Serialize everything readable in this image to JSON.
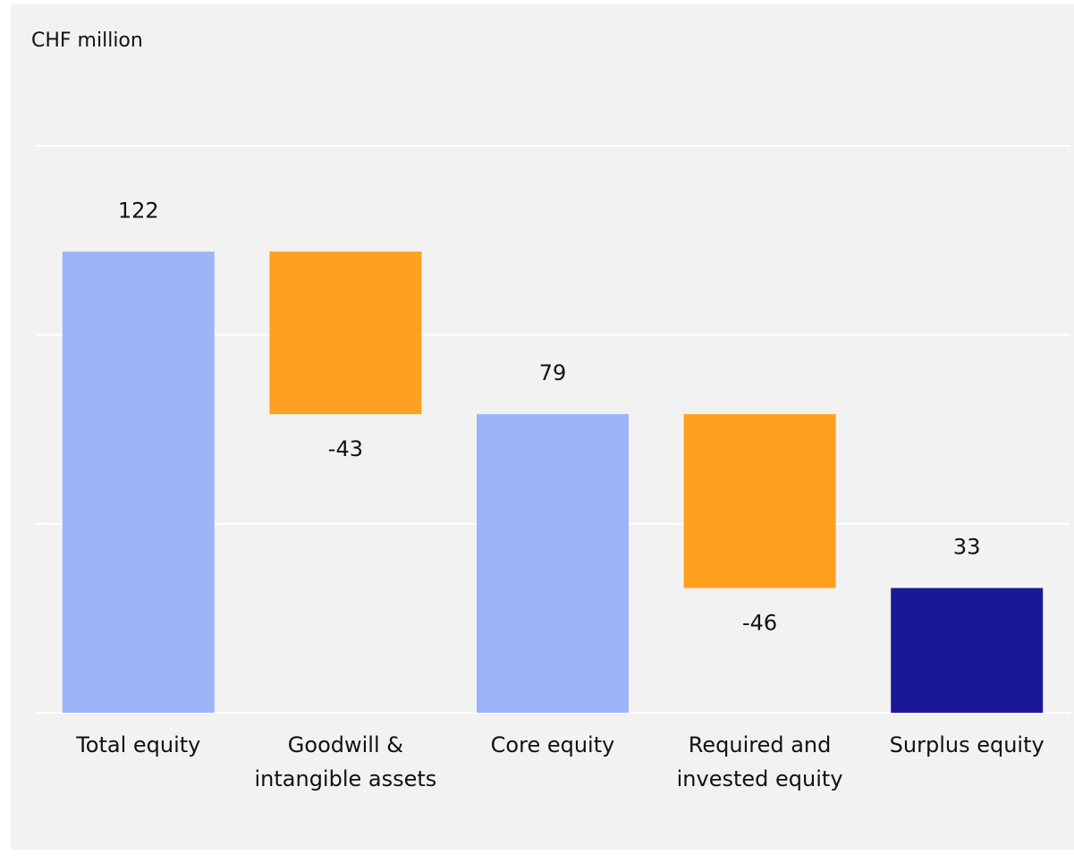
{
  "chart_data": {
    "type": "waterfall",
    "title": "CHF million",
    "categories": [
      "Total equity",
      "Goodwill & intangible assets",
      "Core equity",
      "Required and invested equity",
      "Surplus equity"
    ],
    "values": [
      122,
      -43,
      79,
      -46,
      33
    ],
    "colors": [
      "#9db4f8",
      "#ffa020",
      "#9db4f8",
      "#ffa020",
      "#1a1896"
    ],
    "ylim": [
      0,
      150
    ],
    "yticks": [
      0,
      50,
      100,
      150
    ],
    "grid": true
  }
}
